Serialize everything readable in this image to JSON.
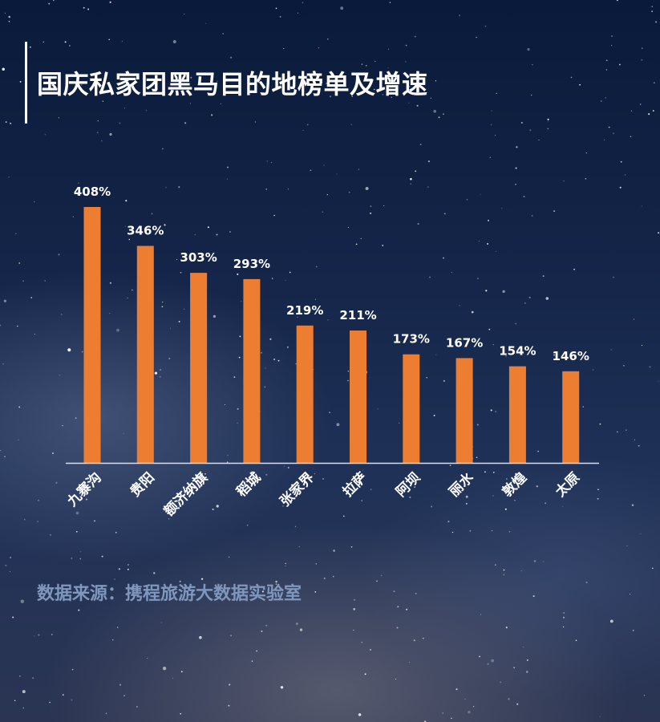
{
  "title": "国庆私家团黑马目的地榜单及增速",
  "source": "数据来源：携程旅游大数据实验室",
  "colors": {
    "bar": "#ed7d31",
    "axis": "#d9dfe8",
    "label": "#ffffff",
    "source": "#7f97bd"
  },
  "chart_data": {
    "type": "bar",
    "title": "国庆私家团黑马目的地榜单及增速",
    "categories": [
      "九寨沟",
      "贵阳",
      "额济纳旗",
      "稻城",
      "张家界",
      "拉萨",
      "阿坝",
      "丽水",
      "敦煌",
      "太原"
    ],
    "values": [
      408,
      346,
      303,
      293,
      219,
      211,
      173,
      167,
      154,
      146
    ],
    "value_labels": [
      "408%",
      "346%",
      "303%",
      "293%",
      "219%",
      "211%",
      "173%",
      "167%",
      "154%",
      "146%"
    ],
    "ylim": [
      0,
      408
    ],
    "grid": false,
    "legend": "none"
  }
}
